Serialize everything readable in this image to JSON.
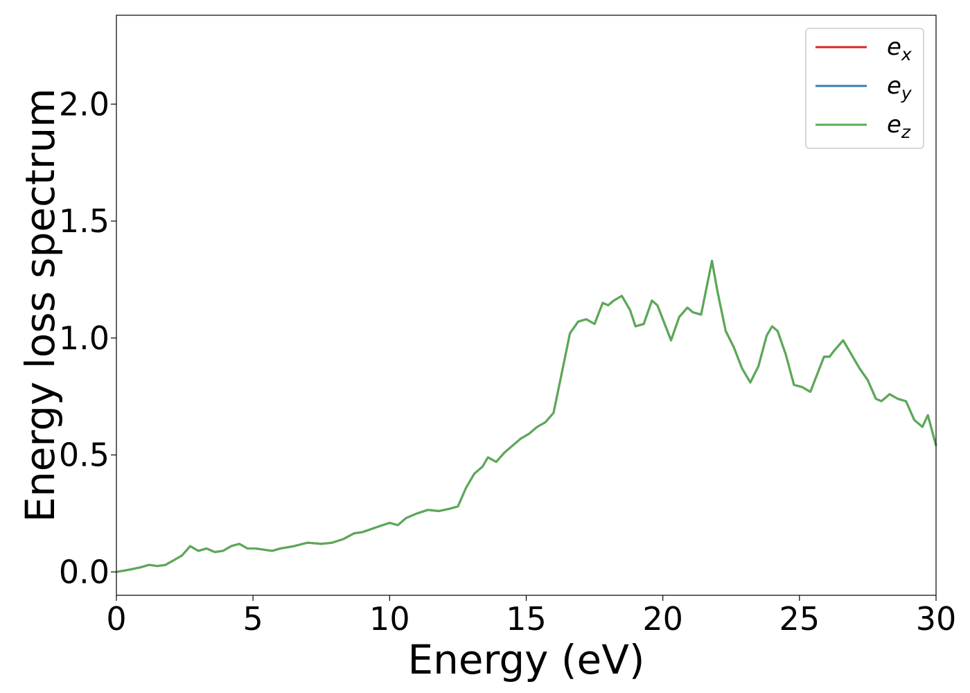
{
  "chart_data": {
    "type": "line",
    "title": "",
    "xlabel": "Energy (eV)",
    "ylabel": "Energy loss spectrum",
    "xlim": [
      0,
      30
    ],
    "ylim": [
      -0.1,
      2.38
    ],
    "xticks": [
      0,
      5,
      10,
      15,
      20,
      25,
      30
    ],
    "yticks": [
      0.0,
      0.5,
      1.0,
      1.5,
      2.0
    ],
    "xtick_labels": [
      "0",
      "5",
      "10",
      "15",
      "20",
      "25",
      "30"
    ],
    "ytick_labels": [
      "0.0",
      "0.5",
      "1.0",
      "1.5",
      "2.0"
    ],
    "grid": false,
    "legend_position": "top-right",
    "series": [
      {
        "name": "e_x",
        "label_base": "e",
        "label_sub": "x",
        "color": "#d62728"
      },
      {
        "name": "e_y",
        "label_base": "e",
        "label_sub": "y",
        "color": "#3a7bb0"
      },
      {
        "name": "e_z",
        "label_base": "e",
        "label_sub": "z",
        "color": "#59ab54"
      }
    ],
    "x": [
      0,
      0.5,
      0.9,
      1.2,
      1.5,
      1.8,
      2.1,
      2.4,
      2.7,
      3.0,
      3.3,
      3.6,
      3.9,
      4.2,
      4.5,
      4.8,
      5.1,
      5.4,
      5.7,
      6.0,
      6.5,
      7.0,
      7.5,
      7.9,
      8.3,
      8.7,
      9.0,
      9.5,
      10.0,
      10.3,
      10.6,
      11.0,
      11.4,
      11.8,
      12.2,
      12.5,
      12.8,
      13.1,
      13.4,
      13.6,
      13.9,
      14.2,
      14.5,
      14.8,
      15.1,
      15.4,
      15.7,
      16.0,
      16.3,
      16.6,
      16.9,
      17.2,
      17.5,
      17.8,
      18.0,
      18.2,
      18.5,
      18.8,
      19.0,
      19.3,
      19.6,
      19.8,
      20.0,
      20.3,
      20.6,
      20.9,
      21.1,
      21.4,
      21.8,
      22.0,
      22.3,
      22.6,
      22.9,
      23.2,
      23.5,
      23.8,
      24.0,
      24.2,
      24.5,
      24.8,
      25.1,
      25.4,
      25.6,
      25.9,
      26.1,
      26.3,
      26.6,
      26.9,
      27.2,
      27.5,
      27.8,
      28.0,
      28.3,
      28.6,
      28.9,
      29.2,
      29.5,
      29.7,
      30.0
    ],
    "y_common": [
      0.0,
      0.01,
      0.02,
      0.03,
      0.025,
      0.03,
      0.05,
      0.07,
      0.11,
      0.09,
      0.1,
      0.085,
      0.09,
      0.11,
      0.12,
      0.1,
      0.1,
      0.095,
      0.09,
      0.1,
      0.11,
      0.125,
      0.12,
      0.125,
      0.14,
      0.165,
      0.17,
      0.19,
      0.21,
      0.2,
      0.23,
      0.25,
      0.265,
      0.26,
      0.27,
      0.28,
      0.36,
      0.42,
      0.45,
      0.49,
      0.47,
      0.51,
      0.54,
      0.57,
      0.59,
      0.62,
      0.64,
      0.68,
      0.85,
      1.02,
      1.07,
      1.08,
      1.06,
      1.15,
      1.14,
      1.16,
      1.18,
      1.12,
      1.05,
      1.06,
      1.16,
      1.14,
      1.08,
      0.99,
      1.09,
      1.13,
      1.11,
      1.1,
      1.33,
      1.2,
      1.03,
      0.96,
      0.87,
      0.81,
      0.88,
      1.01,
      1.05,
      1.03,
      0.93,
      0.8,
      0.79,
      0.77,
      0.83,
      0.92,
      0.92,
      0.95,
      0.99,
      0.93,
      0.87,
      0.82,
      0.74,
      0.73,
      0.76,
      0.74,
      0.73,
      0.65,
      0.62,
      0.67,
      0.54
    ]
  }
}
